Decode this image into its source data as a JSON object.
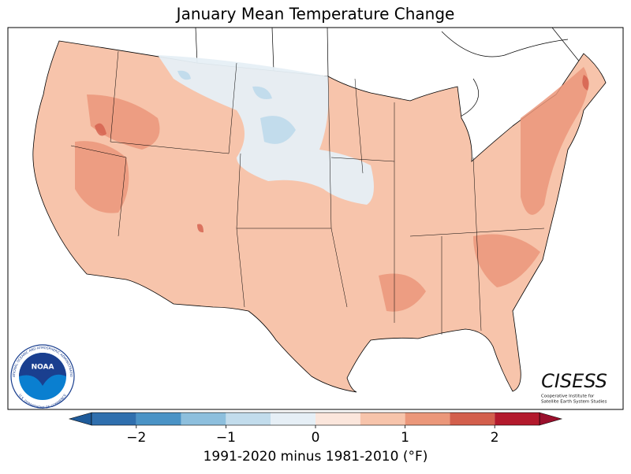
{
  "title": "January Mean Temperature Change",
  "colorbar": {
    "label": "1991-2020 minus 1981-2010 (°F)",
    "xlim": [
      -2.5,
      2.5
    ],
    "levels": [
      -2.5,
      -2,
      -1.5,
      -1,
      -0.5,
      0,
      0.5,
      1,
      1.5,
      2,
      2.5
    ],
    "colors": [
      "#2f6fae",
      "#4a93c6",
      "#8dbfdd",
      "#c2dcec",
      "#e6eff6",
      "#fbe6dc",
      "#f7c4ab",
      "#eb977a",
      "#d35f4c",
      "#b3192c"
    ],
    "under_color": "#1f5b9a",
    "over_color": "#9a0f2c",
    "xticks": [
      {
        "value": -2,
        "label": "−2"
      },
      {
        "value": -1,
        "label": "−1"
      },
      0,
      1,
      2
    ]
  },
  "logos": {
    "noaa": "NOAA",
    "noaa_ring_top": "NATIONAL OCEANIC AND ATMOSPHERIC ADMINISTRATION",
    "noaa_ring_bottom": "U.S. DEPARTMENT OF COMMERCE",
    "cisess": "CISESS",
    "cisess_line1": "Cooperative Institute for",
    "cisess_line2": "Satellite Earth System Studies"
  }
}
